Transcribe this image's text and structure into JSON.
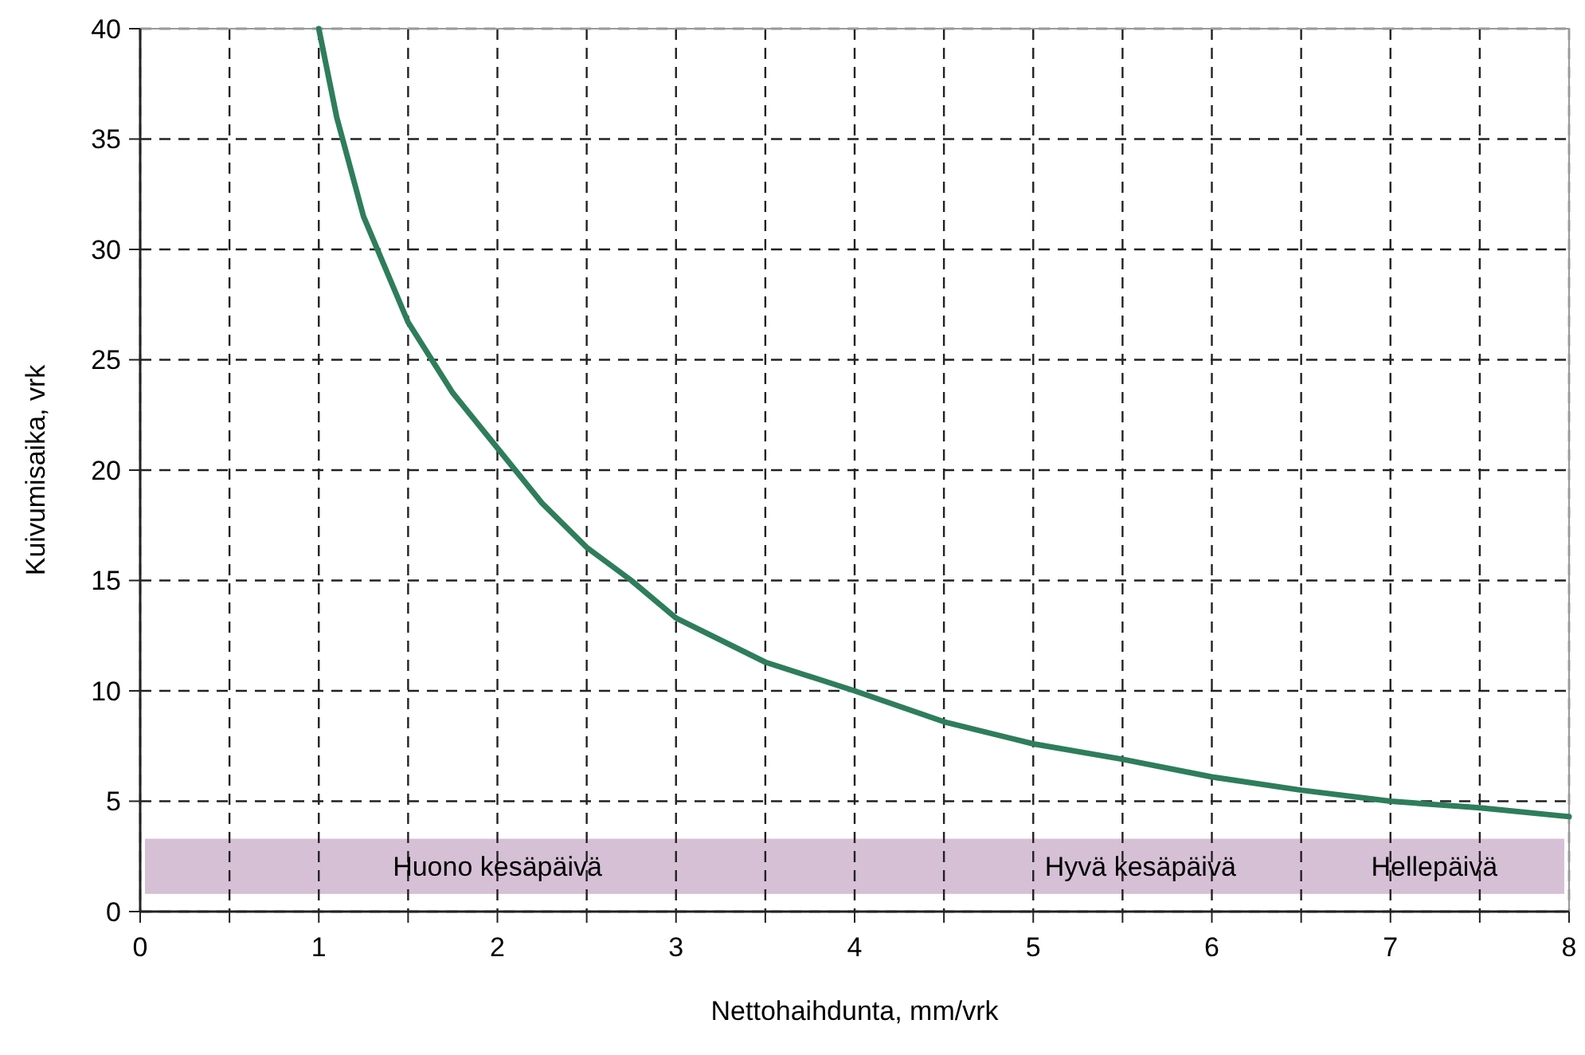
{
  "chart_data": {
    "type": "line",
    "xlabel": "Nettohaihdunta, mm/vrk",
    "ylabel": "Kuivumisaika, vrk",
    "x": [
      1,
      1.1,
      1.25,
      1.5,
      1.75,
      2,
      2.25,
      2.5,
      2.75,
      3,
      3.5,
      4,
      4.5,
      5,
      5.5,
      6,
      6.5,
      7,
      7.5,
      8
    ],
    "series": [
      {
        "color": "#2e7d5b",
        "values": [
          40,
          36,
          31.5,
          26.7,
          23.5,
          21,
          18.5,
          16.5,
          15,
          13.3,
          11.3,
          10,
          8.6,
          7.6,
          6.9,
          6.1,
          5.5,
          5,
          4.7,
          4.3
        ]
      }
    ],
    "xlim": [
      0,
      8
    ],
    "xticks": [
      0,
      {
        "value": 0.5,
        "label": null
      },
      1,
      {
        "value": 1.5,
        "label": null
      },
      2,
      {
        "value": 2.5,
        "label": null
      },
      3,
      {
        "value": 3.5,
        "label": null
      },
      4,
      {
        "value": 4.5,
        "label": null
      },
      5,
      {
        "value": 5.5,
        "label": null
      },
      6,
      {
        "value": 6.5,
        "label": null
      },
      7,
      {
        "value": 7.5,
        "label": null
      },
      8
    ],
    "ylim": [
      0,
      40
    ],
    "yticks": [
      0,
      5,
      10,
      15,
      20,
      25,
      30,
      35,
      40
    ],
    "grid": true,
    "line_style": "solid",
    "marker": "none",
    "bands": [
      {
        "axis": "y",
        "from": 0.8,
        "to": 3.3,
        "color": "#d6c0d6"
      }
    ],
    "annotations": [
      "Huono kesäpäivä",
      "Hyvä kesäpäivä",
      "Hellepäivä"
    ]
  }
}
